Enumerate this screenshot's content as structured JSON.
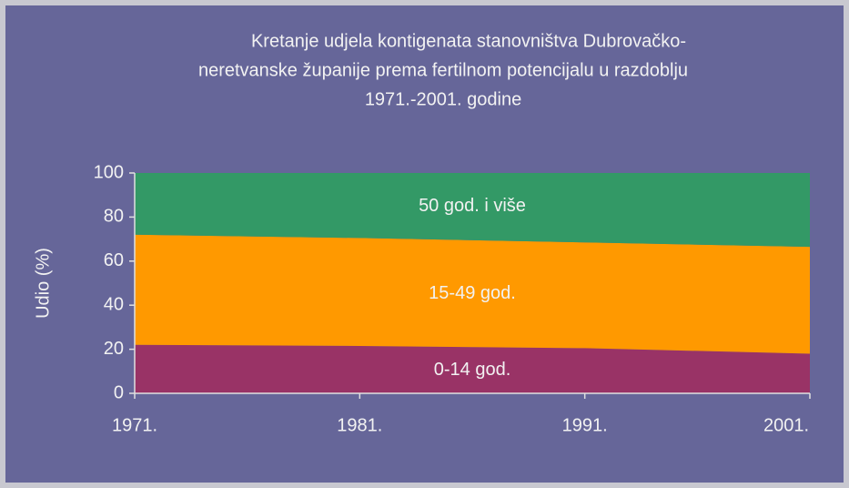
{
  "chart_data": {
    "type": "stacked_area",
    "title": [
      "Kretanje udjela kontigenata stanovništva Dubrovačko-",
      "neretvanske županije prema fertilnom potencijalu u razdoblju",
      "1971.-2001. godine"
    ],
    "ylabel": "Udio (%)",
    "categories": [
      "1971.",
      "1981.",
      "1991.",
      "2001."
    ],
    "series": [
      {
        "name": "0-14 god.",
        "color": "#993366",
        "values": [
          22,
          21.5,
          20.5,
          18
        ]
      },
      {
        "name": "15-49 god.",
        "color": "#ff9900",
        "values": [
          50,
          49,
          48,
          48.5
        ]
      },
      {
        "name": "50 god. i više",
        "color": "#339966",
        "values": [
          28,
          29.5,
          31.5,
          33.5
        ]
      }
    ],
    "ylim": [
      0,
      100
    ],
    "yticks": [
      0,
      20,
      40,
      60,
      80,
      100
    ]
  }
}
